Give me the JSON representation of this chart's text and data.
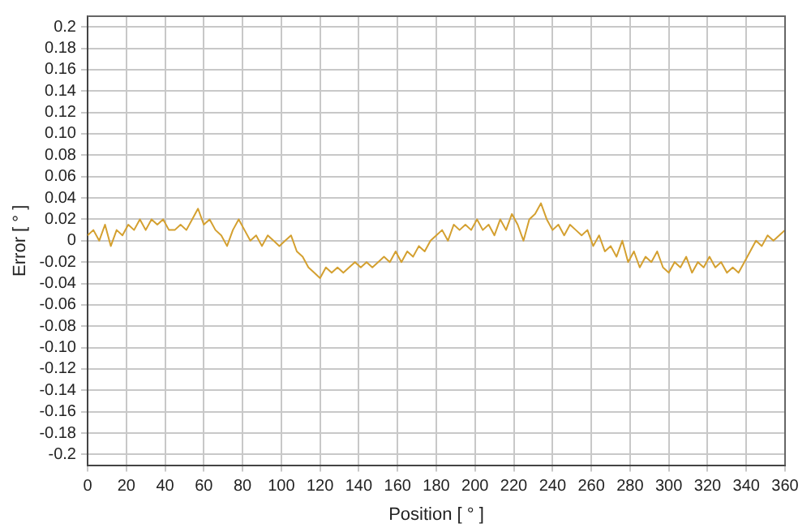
{
  "chart_data": {
    "type": "line",
    "xlabel": "Position [ ° ]",
    "ylabel": "Error [ ° ]",
    "x": [
      0,
      3,
      6,
      9,
      12,
      15,
      18,
      21,
      24,
      27,
      30,
      33,
      36,
      39,
      42,
      45,
      48,
      51,
      54,
      57,
      60,
      63,
      66,
      69,
      72,
      75,
      78,
      81,
      84,
      87,
      90,
      93,
      96,
      99,
      102,
      105,
      108,
      111,
      114,
      117,
      120,
      123,
      126,
      129,
      132,
      135,
      138,
      141,
      144,
      147,
      150,
      153,
      156,
      159,
      162,
      165,
      168,
      171,
      174,
      177,
      180,
      183,
      186,
      189,
      192,
      195,
      198,
      201,
      204,
      207,
      210,
      213,
      216,
      219,
      222,
      225,
      228,
      231,
      234,
      237,
      240,
      243,
      246,
      249,
      252,
      255,
      258,
      261,
      264,
      267,
      270,
      273,
      276,
      279,
      282,
      285,
      288,
      291,
      294,
      297,
      300,
      303,
      306,
      309,
      312,
      315,
      318,
      321,
      324,
      327,
      330,
      333,
      336,
      339,
      342,
      345,
      348,
      351,
      354,
      357,
      360
    ],
    "series": [
      {
        "color": "#d4a030",
        "values": [
          0.005,
          0.01,
          0.0,
          0.015,
          -0.005,
          0.01,
          0.005,
          0.015,
          0.01,
          0.02,
          0.01,
          0.02,
          0.015,
          0.02,
          0.01,
          0.01,
          0.015,
          0.01,
          0.02,
          0.03,
          0.015,
          0.02,
          0.01,
          0.005,
          -0.005,
          0.01,
          0.02,
          0.01,
          0.0,
          0.005,
          -0.005,
          0.005,
          0.0,
          -0.005,
          0.0,
          0.005,
          -0.01,
          -0.015,
          -0.025,
          -0.03,
          -0.035,
          -0.025,
          -0.03,
          -0.025,
          -0.03,
          -0.025,
          -0.02,
          -0.025,
          -0.02,
          -0.025,
          -0.02,
          -0.015,
          -0.02,
          -0.01,
          -0.02,
          -0.01,
          -0.015,
          -0.005,
          -0.01,
          0.0,
          0.005,
          0.01,
          0.0,
          0.015,
          0.01,
          0.015,
          0.01,
          0.02,
          0.01,
          0.015,
          0.005,
          0.02,
          0.01,
          0.025,
          0.015,
          0.0,
          0.02,
          0.025,
          0.035,
          0.02,
          0.01,
          0.015,
          0.005,
          0.015,
          0.01,
          0.005,
          0.01,
          -0.005,
          0.005,
          -0.01,
          -0.005,
          -0.015,
          0.0,
          -0.02,
          -0.01,
          -0.025,
          -0.015,
          -0.02,
          -0.01,
          -0.025,
          -0.03,
          -0.02,
          -0.025,
          -0.015,
          -0.03,
          -0.02,
          -0.025,
          -0.015,
          -0.025,
          -0.02,
          -0.03,
          -0.025,
          -0.03,
          -0.02,
          -0.01,
          0.0,
          -0.005,
          0.005,
          0.0,
          0.005,
          0.01
        ]
      }
    ],
    "xlim": [
      0,
      360
    ],
    "xticks": [
      0,
      20,
      40,
      60,
      80,
      100,
      120,
      140,
      160,
      180,
      200,
      220,
      240,
      260,
      280,
      300,
      320,
      340,
      360
    ],
    "ylim": [
      -0.21,
      0.21
    ],
    "yticks": [
      -0.2,
      -0.18,
      -0.16,
      -0.14,
      -0.12,
      {
        "value": -0.1,
        "label": "-0.10"
      },
      -0.08,
      -0.06,
      -0.04,
      -0.02,
      0,
      0.02,
      0.04,
      0.06,
      0.08,
      {
        "value": 0.1,
        "label": "0.10"
      },
      0.12,
      0.14,
      0.16,
      0.18,
      0.2
    ],
    "grid": true,
    "legend": false,
    "marker": "none",
    "line_style": "solid"
  }
}
